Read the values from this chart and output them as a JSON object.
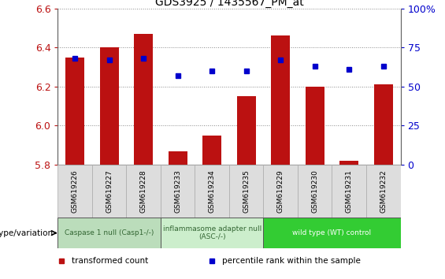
{
  "title": "GDS3925 / 1435567_PM_at",
  "samples": [
    "GSM619226",
    "GSM619227",
    "GSM619228",
    "GSM619233",
    "GSM619234",
    "GSM619235",
    "GSM619229",
    "GSM619230",
    "GSM619231",
    "GSM619232"
  ],
  "bar_values": [
    6.35,
    6.4,
    6.47,
    5.87,
    5.95,
    6.15,
    6.46,
    6.2,
    5.82,
    6.21
  ],
  "dot_values": [
    68,
    67,
    68,
    57,
    60,
    60,
    67,
    63,
    61,
    63
  ],
  "bar_color": "#bb1111",
  "dot_color": "#0000cc",
  "ylim_left": [
    5.8,
    6.6
  ],
  "ylim_right": [
    0,
    100
  ],
  "yticks_left": [
    5.8,
    6.0,
    6.2,
    6.4,
    6.6
  ],
  "yticks_right": [
    0,
    25,
    50,
    75,
    100
  ],
  "ytick_labels_right": [
    "0",
    "25",
    "50",
    "75",
    "100%"
  ],
  "groups": [
    {
      "label": "Caspase 1 null (Casp1-/-)",
      "start": 0,
      "end": 3,
      "color": "#bbddbb",
      "text_color": "#336633"
    },
    {
      "label": "inflammasome adapter null\n(ASC-/-)",
      "start": 3,
      "end": 6,
      "color": "#cceecc",
      "text_color": "#336633"
    },
    {
      "label": "wild type (WT) control",
      "start": 6,
      "end": 10,
      "color": "#33cc33",
      "text_color": "#ffffff"
    }
  ],
  "legend_items": [
    {
      "label": "transformed count",
      "color": "#bb1111"
    },
    {
      "label": "percentile rank within the sample",
      "color": "#0000cc"
    }
  ],
  "genotype_label": "genotype/variation",
  "grid_color": "#888888",
  "bar_bottom": 5.8,
  "sample_box_color": "#dddddd",
  "sample_box_edge": "#aaaaaa"
}
